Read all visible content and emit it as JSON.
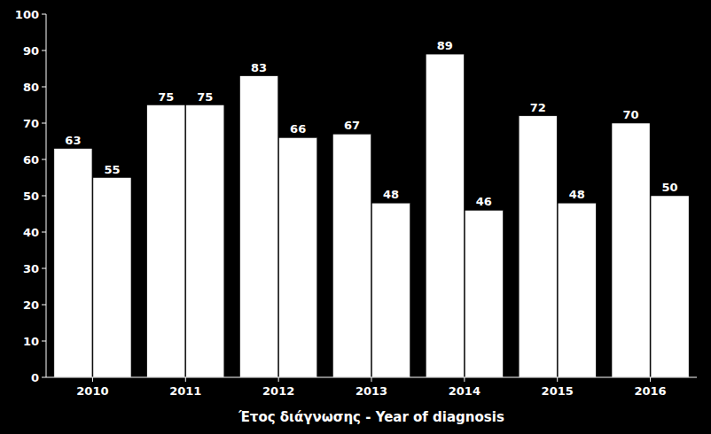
{
  "chart_data": {
    "type": "bar",
    "x_label": "Έτος διάγνωσης - Year of diagnosis",
    "categories": [
      "2010",
      "2011",
      "2012",
      "2013",
      "2014",
      "2015",
      "2016"
    ],
    "series": [
      {
        "color": "#ffffff",
        "values": [
          63,
          75,
          83,
          67,
          89,
          72,
          70
        ]
      },
      {
        "color": "#ffffff",
        "values": [
          55,
          75,
          66,
          48,
          46,
          48,
          50
        ]
      }
    ],
    "ylim": [
      0,
      100
    ],
    "yticks": [
      0,
      10,
      20,
      30,
      40,
      50,
      60,
      70,
      80,
      90,
      100
    ],
    "grid": false,
    "data_labels": true
  }
}
